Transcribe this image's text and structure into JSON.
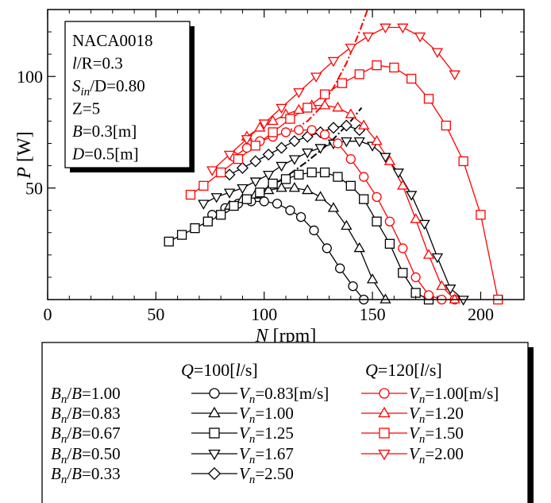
{
  "chart_data": {
    "type": "line",
    "xlabel": {
      "var": "N",
      "unit": " [rpm]"
    },
    "ylabel": {
      "var": "P",
      "unit": " [W]"
    },
    "xlim": [
      0,
      220
    ],
    "ylim": [
      0,
      130
    ],
    "xticks": [
      0,
      50,
      100,
      150,
      200
    ],
    "yticks": [
      50,
      100
    ],
    "grid": false,
    "info_box": [
      {
        "parts": [
          {
            "t": "NACA0018"
          }
        ]
      },
      {
        "parts": [
          {
            "t": "l",
            "i": true
          },
          {
            "t": "/R=0.3"
          }
        ]
      },
      {
        "parts": [
          {
            "t": "S",
            "i": true
          },
          {
            "t": "in",
            "i": true,
            "sub": true
          },
          {
            "t": "/D=0.80"
          }
        ]
      },
      {
        "parts": [
          {
            "t": "Z=5"
          }
        ]
      },
      {
        "parts": [
          {
            "t": "B",
            "i": true
          },
          {
            "t": "=0.3[m]"
          }
        ]
      },
      {
        "parts": [
          {
            "t": "D",
            "i": true
          },
          {
            "t": "=0.5[m]"
          }
        ]
      }
    ],
    "legend": {
      "header_left": [
        {
          "t": "Q",
          "i": true
        },
        {
          "t": "=100["
        },
        {
          "t": "l",
          "i": true
        },
        {
          "t": "/s]"
        }
      ],
      "header_right": [
        {
          "t": "Q",
          "i": true
        },
        {
          "t": "=120["
        },
        {
          "t": "l",
          "i": true
        },
        {
          "t": "/s]"
        }
      ],
      "row_labels": [
        [
          {
            "t": "B",
            "i": true
          },
          {
            "t": "n",
            "i": true,
            "sub": true
          },
          {
            "t": "/"
          },
          {
            "t": "B",
            "i": true
          },
          {
            "t": "=1.00"
          }
        ],
        [
          {
            "t": "B",
            "i": true
          },
          {
            "t": "n",
            "i": true,
            "sub": true
          },
          {
            "t": "/"
          },
          {
            "t": "B",
            "i": true
          },
          {
            "t": "=0.83"
          }
        ],
        [
          {
            "t": "B",
            "i": true
          },
          {
            "t": "n",
            "i": true,
            "sub": true
          },
          {
            "t": "/"
          },
          {
            "t": "B",
            "i": true
          },
          {
            "t": "=0.67"
          }
        ],
        [
          {
            "t": "B",
            "i": true
          },
          {
            "t": "n",
            "i": true,
            "sub": true
          },
          {
            "t": "/"
          },
          {
            "t": "B",
            "i": true
          },
          {
            "t": "=0.50"
          }
        ],
        [
          {
            "t": "B",
            "i": true
          },
          {
            "t": "n",
            "i": true,
            "sub": true
          },
          {
            "t": "/"
          },
          {
            "t": "B",
            "i": true
          },
          {
            "t": "=0.33"
          }
        ]
      ]
    },
    "colors": {
      "q100": "#000000",
      "q120": "#ff0000"
    },
    "series": [
      {
        "q": "100",
        "marker": "circle",
        "row": 0,
        "label": [
          {
            "t": "V",
            "i": true
          },
          {
            "t": "n",
            "i": true,
            "sub": true
          },
          {
            "t": "=0.83[m/s]"
          }
        ],
        "x": [
          76,
          82,
          88,
          94,
          100,
          106,
          112,
          117,
          123,
          129,
          135,
          141,
          146
        ],
        "y": [
          38,
          41,
          43,
          44,
          44,
          43,
          40,
          37,
          31,
          23,
          14,
          6,
          0
        ]
      },
      {
        "q": "100",
        "marker": "triangle-up",
        "row": 1,
        "label": [
          {
            "t": "V",
            "i": true
          },
          {
            "t": "n",
            "i": true,
            "sub": true
          },
          {
            "t": "=1.00"
          }
        ],
        "x": [
          84,
          90,
          96,
          102,
          108,
          114,
          120,
          126,
          132,
          138,
          144,
          150,
          156
        ],
        "y": [
          42,
          45,
          47,
          49,
          50,
          50,
          49,
          46,
          41,
          33,
          23,
          9,
          0
        ]
      },
      {
        "q": "100",
        "marker": "square",
        "row": 2,
        "label": [
          {
            "t": "V",
            "i": true
          },
          {
            "t": "n",
            "i": true,
            "sub": true
          },
          {
            "t": "=1.25"
          }
        ],
        "x": [
          56,
          62,
          68,
          74,
          80,
          86,
          92,
          98,
          104,
          110,
          116,
          122,
          128,
          134,
          140,
          146,
          152,
          158,
          164,
          170,
          176
        ],
        "y": [
          26,
          29,
          32,
          35,
          38,
          42,
          45,
          48,
          52,
          54,
          56,
          57,
          57,
          55,
          51,
          45,
          35,
          25,
          12,
          3,
          0
        ]
      },
      {
        "q": "100",
        "marker": "triangle-down",
        "row": 3,
        "label": [
          {
            "t": "V",
            "i": true
          },
          {
            "t": "n",
            "i": true,
            "sub": true
          },
          {
            "t": "=1.67"
          }
        ],
        "x": [
          72,
          78,
          84,
          90,
          96,
          102,
          108,
          114,
          120,
          126,
          132,
          138,
          144,
          150,
          156,
          162,
          168,
          174,
          180,
          186,
          192
        ],
        "y": [
          43,
          46,
          48,
          50,
          53,
          56,
          60,
          63,
          66,
          68,
          70,
          71,
          71,
          69,
          64,
          57,
          47,
          34,
          19,
          5,
          0
        ]
      },
      {
        "q": "100",
        "marker": "diamond",
        "row": 4,
        "label": [
          {
            "t": "V",
            "i": true
          },
          {
            "t": "n",
            "i": true,
            "sub": true
          },
          {
            "t": "=2.50"
          }
        ],
        "x": [
          84,
          90,
          96,
          102,
          108,
          114,
          120,
          126,
          132,
          138,
          144
        ],
        "y": [
          56,
          59,
          62,
          65,
          68,
          71,
          73,
          75,
          77,
          78,
          76
        ]
      },
      {
        "q": "120",
        "marker": "circle",
        "row": 0,
        "label": [
          {
            "t": "V",
            "i": true
          },
          {
            "t": "n",
            "i": true,
            "sub": true
          },
          {
            "t": "=1.00[m/s]"
          }
        ],
        "x": [
          86,
          92,
          98,
          104,
          110,
          116,
          122,
          128,
          134,
          140,
          146,
          152,
          158,
          164,
          170,
          176,
          182,
          188
        ],
        "y": [
          64,
          68,
          71,
          73,
          75,
          76,
          76,
          74,
          70,
          63,
          55,
          46,
          35,
          23,
          10,
          2,
          0,
          0
        ]
      },
      {
        "q": "120",
        "marker": "triangle-up",
        "row": 1,
        "label": [
          {
            "t": "V",
            "i": true
          },
          {
            "t": "n",
            "i": true,
            "sub": true
          },
          {
            "t": "=1.20"
          }
        ],
        "x": [
          92,
          98,
          104,
          110,
          116,
          122,
          128,
          134,
          140,
          146,
          152,
          158,
          164,
          170,
          176,
          182,
          188
        ],
        "y": [
          73,
          77,
          80,
          83,
          85,
          87,
          87,
          86,
          83,
          78,
          71,
          62,
          51,
          36,
          20,
          6,
          0
        ]
      },
      {
        "q": "120",
        "marker": "square",
        "row": 2,
        "label": [
          {
            "t": "V",
            "i": true
          },
          {
            "t": "n",
            "i": true,
            "sub": true
          },
          {
            "t": "=1.50"
          }
        ],
        "x": [
          66,
          72,
          80,
          88,
          96,
          104,
          112,
          120,
          128,
          136,
          144,
          152,
          160,
          168,
          176,
          184,
          192,
          200,
          208
        ],
        "y": [
          47,
          51,
          57,
          63,
          69,
          75,
          81,
          86,
          92,
          97,
          101,
          105,
          104,
          99,
          90,
          78,
          62,
          38,
          0
        ]
      },
      {
        "q": "120",
        "marker": "triangle-down",
        "row": 3,
        "label": [
          {
            "t": "V",
            "i": true
          },
          {
            "t": "n",
            "i": true,
            "sub": true
          },
          {
            "t": "=2.00"
          }
        ],
        "x": [
          76,
          84,
          92,
          100,
          108,
          116,
          124,
          132,
          140,
          148,
          156,
          164,
          172,
          180,
          188
        ],
        "y": [
          58,
          65,
          72,
          79,
          86,
          93,
          100,
          107,
          113,
          118,
          122,
          122,
          118,
          111,
          101
        ]
      }
    ],
    "envelopes": [
      {
        "q": "100",
        "style": "dash-dot",
        "x": [
          90,
          100,
          110,
          120,
          130,
          140,
          145
        ],
        "y": [
          44,
          49,
          55,
          62,
          70,
          80,
          86
        ]
      },
      {
        "q": "120",
        "style": "dash-dot",
        "x": [
          108,
          115,
          120,
          126,
          132,
          138,
          144,
          150
        ],
        "y": [
          75,
          77,
          80,
          86,
          95,
          106,
          120,
          136
        ]
      }
    ]
  }
}
